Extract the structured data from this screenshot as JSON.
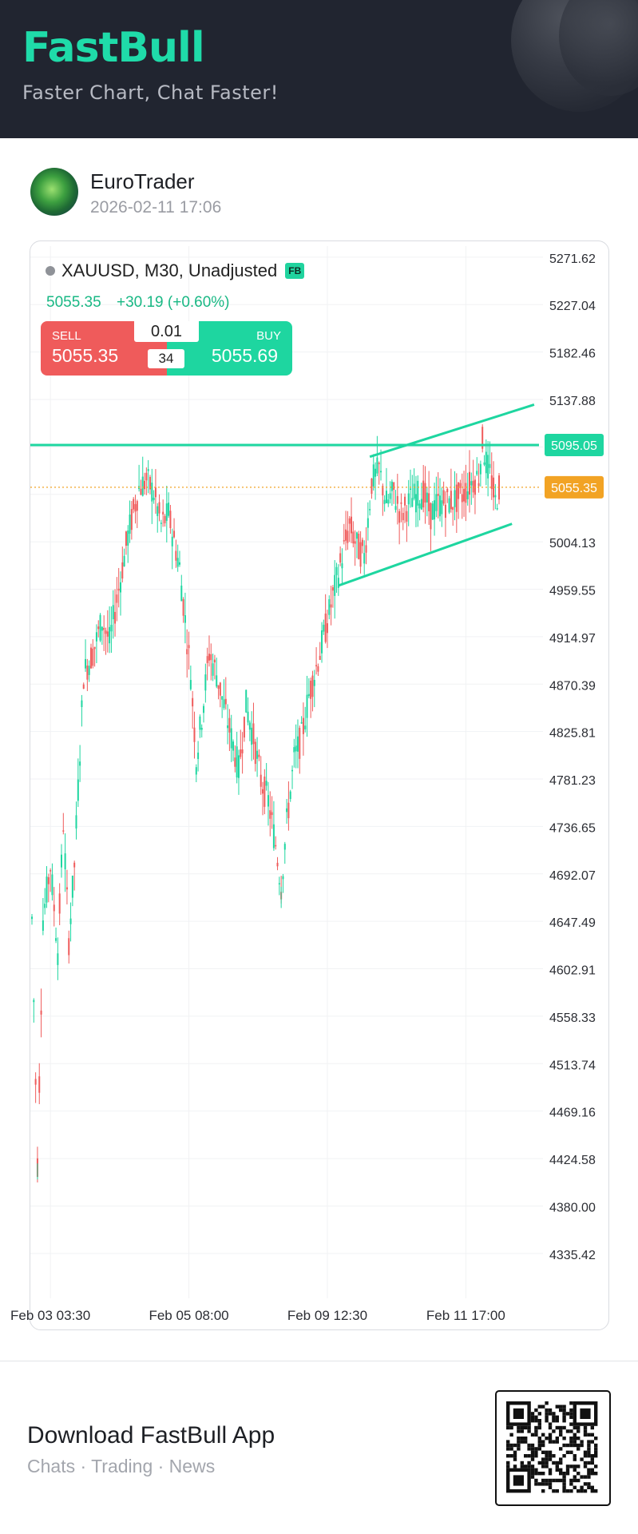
{
  "header": {
    "brand": "FastBull",
    "tagline": "Faster Chart, Chat Faster!"
  },
  "post": {
    "author": "EuroTrader",
    "timestamp": "2026-02-11 17:06"
  },
  "instrument": {
    "title": "XAUUSD, M30, Unadjusted",
    "badge": "FB",
    "last": "5055.35",
    "change": "+30.19 (+0.60%)"
  },
  "trade_panel": {
    "sell_label": "SELL",
    "sell_price": "5055.35",
    "buy_label": "BUY",
    "buy_price": "5055.69",
    "lot": "0.01",
    "spread": "34"
  },
  "footer": {
    "title": "Download FastBull App",
    "subtitle": "Chats · Trading · News"
  },
  "colors": {
    "up": "#1ed6a0",
    "down": "#ef5b5b",
    "header_bg": "#212530",
    "brand": "#1fdba9",
    "price_tag": "#f2a324"
  },
  "chart_data": {
    "type": "candlestick",
    "symbol": "XAUUSD",
    "timeframe": "M30",
    "y_ticks": [
      5271.62,
      5227.04,
      5182.46,
      5137.88,
      5093.3,
      5048.71,
      5004.13,
      4959.55,
      4914.97,
      4870.39,
      4825.81,
      4781.23,
      4736.65,
      4692.07,
      4647.49,
      4602.91,
      4558.33,
      4513.74,
      4469.16,
      4424.58,
      4380.0,
      4335.42
    ],
    "y_tick_labels": [
      "5271.62",
      "5227.04",
      "5182.46",
      "5137.88",
      "",
      "",
      "5004.13",
      "4959.55",
      "4914.97",
      "4870.39",
      "4825.81",
      "4781.23",
      "4736.65",
      "4692.07",
      "4647.49",
      "4602.91",
      "4558.33",
      "4513.74",
      "4469.16",
      "4424.58",
      "4380.00",
      "4335.42"
    ],
    "ylim": [
      4297,
      5282
    ],
    "x_tick_labels": [
      "Feb 03 03:30",
      "Feb 05 08:00",
      "Feb 09 12:30",
      "Feb 11 17:00"
    ],
    "x_tick_index": [
      10,
      85,
      160,
      235
    ],
    "bar_count": 254,
    "resistance_level": {
      "value": 5095.05,
      "label": "5095.05"
    },
    "current_price": {
      "value": 5055.35,
      "label": "5055.35"
    },
    "trendlines": [
      {
        "from": [
          183,
          5084
        ],
        "to": [
          272,
          5133
        ]
      },
      {
        "from": [
          166,
          4963
        ],
        "to": [
          260,
          5021
        ]
      }
    ],
    "path_anchors": [
      [
        0,
        4650
      ],
      [
        3,
        4420
      ],
      [
        6,
        4650
      ],
      [
        10,
        4700
      ],
      [
        14,
        4620
      ],
      [
        17,
        4740
      ],
      [
        20,
        4630
      ],
      [
        23,
        4700
      ],
      [
        28,
        4880
      ],
      [
        33,
        4900
      ],
      [
        38,
        4930
      ],
      [
        42,
        4910
      ],
      [
        46,
        4950
      ],
      [
        52,
        5010
      ],
      [
        58,
        5055
      ],
      [
        62,
        5062
      ],
      [
        66,
        5050
      ],
      [
        70,
        5020
      ],
      [
        74,
        5030
      ],
      [
        80,
        4980
      ],
      [
        86,
        4880
      ],
      [
        89,
        4800
      ],
      [
        92,
        4840
      ],
      [
        96,
        4900
      ],
      [
        100,
        4880
      ],
      [
        104,
        4850
      ],
      [
        108,
        4820
      ],
      [
        112,
        4790
      ],
      [
        116,
        4850
      ],
      [
        120,
        4820
      ],
      [
        124,
        4780
      ],
      [
        128,
        4760
      ],
      [
        132,
        4720
      ],
      [
        135,
        4680
      ],
      [
        138,
        4740
      ],
      [
        142,
        4800
      ],
      [
        146,
        4820
      ],
      [
        150,
        4860
      ],
      [
        156,
        4900
      ],
      [
        162,
        4945
      ],
      [
        168,
        4990
      ],
      [
        172,
        5020
      ],
      [
        176,
        5000
      ],
      [
        180,
        4990
      ],
      [
        184,
        5060
      ],
      [
        188,
        5072
      ],
      [
        192,
        5040
      ],
      [
        196,
        5050
      ],
      [
        200,
        5030
      ],
      [
        206,
        5045
      ],
      [
        212,
        5050
      ],
      [
        216,
        5030
      ],
      [
        220,
        5040
      ],
      [
        226,
        5042
      ],
      [
        230,
        5044
      ],
      [
        234,
        5050
      ],
      [
        238,
        5060
      ],
      [
        242,
        5066
      ],
      [
        244,
        5098
      ],
      [
        246,
        5078
      ],
      [
        249,
        5062
      ],
      [
        251,
        5040
      ],
      [
        253,
        5055
      ]
    ]
  }
}
